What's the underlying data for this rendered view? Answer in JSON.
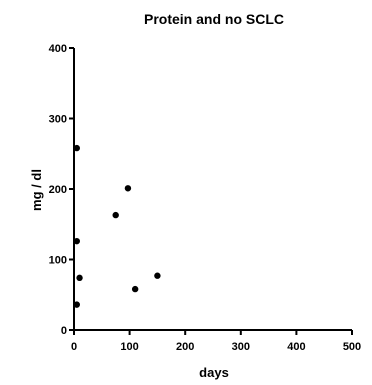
{
  "chart_data": {
    "type": "scatter",
    "title": "Protein and no SCLC",
    "xlabel": "days",
    "ylabel": "mg / dl",
    "xlim": [
      0,
      500
    ],
    "ylim": [
      0,
      400
    ],
    "xticks": [
      0,
      100,
      200,
      300,
      400,
      500
    ],
    "yticks": [
      0,
      100,
      200,
      300,
      400
    ],
    "grid": false,
    "series": [
      {
        "points": [
          {
            "x": 5,
            "y": 258
          },
          {
            "x": 5,
            "y": 126
          },
          {
            "x": 10,
            "y": 74
          },
          {
            "x": 5,
            "y": 36
          },
          {
            "x": 75,
            "y": 163
          },
          {
            "x": 97,
            "y": 201
          },
          {
            "x": 110,
            "y": 58
          },
          {
            "x": 150,
            "y": 77
          }
        ]
      }
    ]
  }
}
